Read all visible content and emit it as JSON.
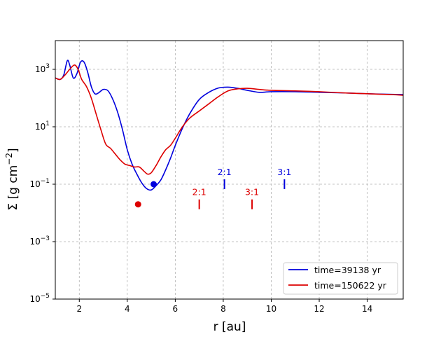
{
  "chart_data": {
    "type": "line",
    "xlabel": "r [au]",
    "ylabel": "Σ [g cm",
    "ylabel_exp": "−2",
    "ylabel_close": "]",
    "xlim": [
      1.0,
      15.5
    ],
    "ylim_log10": [
      -5,
      4.0
    ],
    "yscale": "log",
    "grid": true,
    "x_ticks": [
      2,
      4,
      6,
      8,
      10,
      12,
      14
    ],
    "x_tick_labels": [
      "2",
      "4",
      "6",
      "8",
      "10",
      "12",
      "14"
    ],
    "y_ticks_log10": [
      -5,
      -3,
      -1,
      1,
      3
    ],
    "y_tick_base": "10",
    "y_tick_exponents": [
      "−5",
      "−3",
      "−1",
      "1",
      "3"
    ],
    "legend_position": "lower-right",
    "series": [
      {
        "name": "time=39138 yr",
        "color": "#0000dd",
        "x": [
          1.0,
          1.2,
          1.35,
          1.5,
          1.6,
          1.75,
          1.9,
          2.05,
          2.2,
          2.35,
          2.5,
          2.65,
          2.8,
          3.0,
          3.2,
          3.4,
          3.6,
          3.8,
          4.0,
          4.2,
          4.4,
          4.6,
          4.8,
          5.0,
          5.2,
          5.4,
          5.6,
          5.8,
          6.0,
          6.3,
          6.6,
          7.0,
          7.4,
          7.8,
          8.2,
          8.6,
          9.0,
          9.5,
          10.0,
          11.0,
          12.0,
          13.0,
          14.0,
          15.0,
          15.5
        ],
        "y_log10": [
          2.7,
          2.65,
          2.8,
          3.3,
          3.15,
          2.7,
          2.85,
          3.25,
          3.25,
          2.9,
          2.4,
          2.15,
          2.18,
          2.3,
          2.25,
          1.95,
          1.5,
          0.9,
          0.2,
          -0.3,
          -0.65,
          -0.95,
          -1.15,
          -1.2,
          -1.05,
          -0.85,
          -0.5,
          -0.1,
          0.35,
          0.95,
          1.45,
          1.95,
          2.2,
          2.35,
          2.38,
          2.34,
          2.27,
          2.2,
          2.22,
          2.22,
          2.2,
          2.18,
          2.15,
          2.13,
          2.12
        ]
      },
      {
        "name": "time=150622 yr",
        "color": "#dd0000",
        "x": [
          1.0,
          1.2,
          1.4,
          1.6,
          1.8,
          1.95,
          2.1,
          2.3,
          2.5,
          2.7,
          2.9,
          3.1,
          3.3,
          3.5,
          3.7,
          3.9,
          4.1,
          4.3,
          4.5,
          4.7,
          4.85,
          5.0,
          5.2,
          5.4,
          5.6,
          5.8,
          6.0,
          6.3,
          6.6,
          7.0,
          7.4,
          7.8,
          8.2,
          8.6,
          9.0,
          9.5,
          10.0,
          11.0,
          12.0,
          13.0,
          14.0,
          15.0,
          15.5
        ],
        "y_log10": [
          2.7,
          2.65,
          2.8,
          3.0,
          3.15,
          3.0,
          2.65,
          2.4,
          2.0,
          1.45,
          0.9,
          0.4,
          0.25,
          0.05,
          -0.15,
          -0.3,
          -0.35,
          -0.4,
          -0.4,
          -0.55,
          -0.65,
          -0.6,
          -0.35,
          -0.05,
          0.2,
          0.35,
          0.6,
          1.0,
          1.3,
          1.55,
          1.8,
          2.05,
          2.25,
          2.32,
          2.34,
          2.3,
          2.27,
          2.25,
          2.22,
          2.18,
          2.15,
          2.12,
          2.1
        ]
      }
    ],
    "markers": [
      {
        "x": 5.1,
        "y_log10": -1.0,
        "color": "#0000dd"
      },
      {
        "x": 4.45,
        "y_log10": -1.7,
        "color": "#dd0000"
      }
    ],
    "resonances": [
      {
        "label": "2:1",
        "x": 8.05,
        "y_log10": -1.0,
        "color": "#0000dd"
      },
      {
        "label": "3:1",
        "x": 10.55,
        "y_log10": -1.0,
        "color": "#0000dd"
      },
      {
        "label": "2:1",
        "x": 7.0,
        "y_log10": -1.7,
        "color": "#dd0000"
      },
      {
        "label": "3:1",
        "x": 9.2,
        "y_log10": -1.7,
        "color": "#dd0000"
      }
    ]
  }
}
